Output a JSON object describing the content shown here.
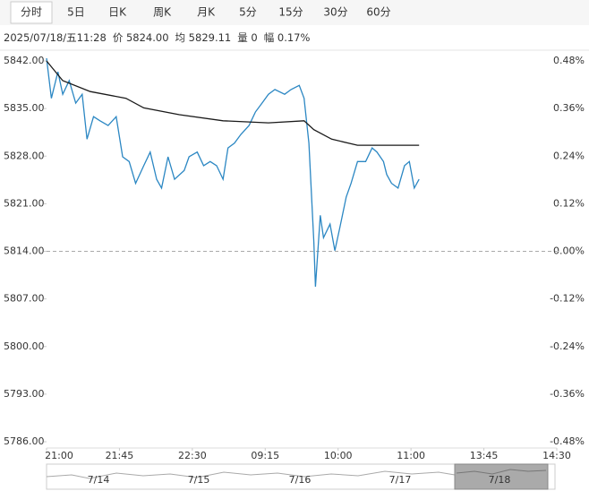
{
  "tabs": [
    "分时",
    "5日",
    "日K",
    "周K",
    "月K",
    "5分",
    "15分",
    "30分",
    "60分"
  ],
  "status": {
    "time": "2025/07/18/五11:28",
    "price": "价 5824.00",
    "avg": "均 5829.11",
    "volume": "量 0",
    "change": "幅 0.17%"
  },
  "chart_data": {
    "type": "line",
    "series": [
      {
        "color": "#2b87c3",
        "x": [
          0,
          3,
          7,
          10,
          14,
          18,
          22,
          25,
          29,
          33,
          38,
          43,
          47,
          51,
          55,
          60,
          64,
          68,
          71,
          75,
          79,
          85,
          88,
          93,
          97,
          101,
          105,
          109,
          112,
          116,
          120,
          125,
          129,
          133,
          137,
          141,
          147,
          151,
          156,
          159,
          162,
          165,
          166,
          169,
          171,
          175,
          178,
          181,
          185,
          188,
          192,
          197,
          201,
          204,
          208,
          210,
          213,
          217,
          221,
          224,
          227,
          230
        ],
        "values": [
          5842.4,
          5836.5,
          5840.4,
          5837.1,
          5839.1,
          5835.8,
          5837.1,
          5830.5,
          5833.8,
          5833.2,
          5832.5,
          5833.8,
          5827.9,
          5827.2,
          5824.0,
          5826.6,
          5828.6,
          5824.6,
          5823.3,
          5827.9,
          5824.6,
          5825.9,
          5827.9,
          5828.6,
          5826.6,
          5827.2,
          5826.6,
          5824.6,
          5829.2,
          5829.9,
          5831.2,
          5832.5,
          5834.5,
          5835.8,
          5837.1,
          5837.8,
          5837.1,
          5837.8,
          5838.4,
          5836.5,
          5829.9,
          5815.4,
          5808.8,
          5819.3,
          5816.0,
          5818.0,
          5814.1,
          5817.4,
          5822.0,
          5824.0,
          5827.2,
          5827.2,
          5829.2,
          5828.6,
          5827.2,
          5825.3,
          5824.0,
          5823.3,
          5826.6,
          5827.2,
          5823.3,
          5824.6
        ]
      },
      {
        "color": "#1a1a1a",
        "x": [
          0,
          10,
          27,
          49,
          60,
          82,
          109,
          137,
          159,
          165,
          176,
          192,
          230
        ],
        "values": [
          5842.0,
          5839.1,
          5837.5,
          5836.5,
          5835.1,
          5834.1,
          5833.2,
          5832.9,
          5833.2,
          5831.9,
          5830.5,
          5829.6,
          5829.6
        ]
      }
    ],
    "xlim": [
      0,
      315
    ],
    "xticks": [
      {
        "value": 0,
        "label": "21:00"
      },
      {
        "value": 45,
        "label": "21:45"
      },
      {
        "value": 90,
        "label": "22:30"
      },
      {
        "value": 135,
        "label": "09:15"
      },
      {
        "value": 180,
        "label": "10:00"
      },
      {
        "value": 225,
        "label": "11:00"
      },
      {
        "value": 270,
        "label": "13:45"
      },
      {
        "value": 315,
        "label": "14:30"
      }
    ],
    "ylim": [
      5786,
      5842
    ],
    "yticks": [
      {
        "value": 5842,
        "label": "5842.00"
      },
      {
        "value": 5835,
        "label": "5835.00"
      },
      {
        "value": 5828,
        "label": "5828.00"
      },
      {
        "value": 5821,
        "label": "5821.00"
      },
      {
        "value": 5814,
        "label": "5814.00"
      },
      {
        "value": 5807,
        "label": "5807.00"
      },
      {
        "value": 5800,
        "label": "5800.00"
      },
      {
        "value": 5793,
        "label": "5793.00"
      },
      {
        "value": 5786,
        "label": "5786.00"
      }
    ],
    "y2lim": [
      -0.48,
      0.48
    ],
    "y2ticks": [
      {
        "value": 0.48,
        "label": "0.48%"
      },
      {
        "value": 0.36,
        "label": "0.36%"
      },
      {
        "value": 0.24,
        "label": "0.24%"
      },
      {
        "value": 0.12,
        "label": "0.12%"
      },
      {
        "value": 0,
        "label": "0.00%"
      },
      {
        "value": -0.12,
        "label": "-0.12%"
      },
      {
        "value": -0.24,
        "label": "-0.24%"
      },
      {
        "value": -0.36,
        "label": "-0.36%"
      },
      {
        "value": -0.48,
        "label": "-0.48%"
      }
    ],
    "reference_line": 5814,
    "up_color": "#e0201a",
    "down_color": "#1e9b1e",
    "flat_color": "#555555",
    "grid": false
  },
  "navigator": {
    "dates": [
      "7/14",
      "7/15",
      "7/16",
      "7/17",
      "7/18"
    ]
  }
}
